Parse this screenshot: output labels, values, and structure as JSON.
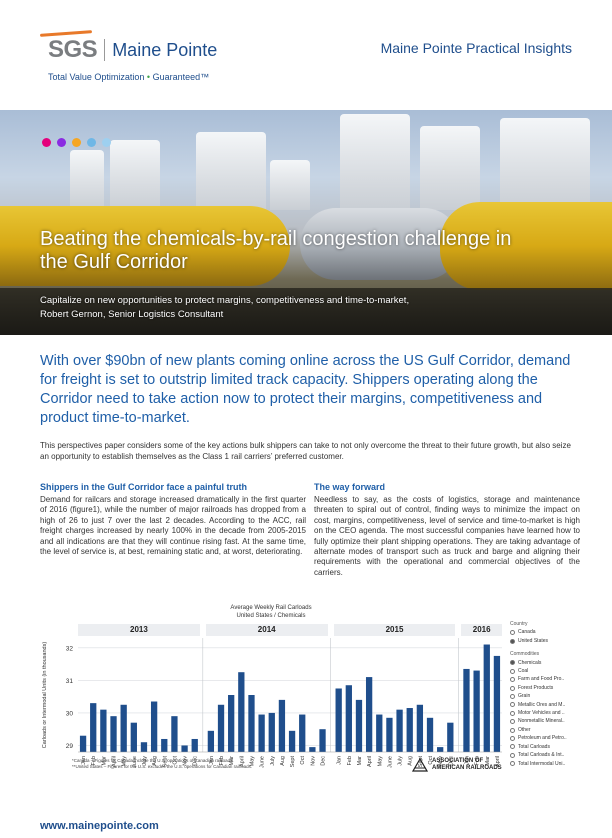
{
  "header": {
    "logo_sgs": "SGS",
    "logo_name": "Maine Pointe",
    "tagline": "Total Value Optimization",
    "tagline_dot": "•",
    "tagline_guarantee": "Guaranteed™",
    "series_title": "Maine Pointe Practical Insights"
  },
  "hero": {
    "title": "Beating the chemicals-by-rail congestion challenge in the Gulf Corridor",
    "subtitle": "Capitalize on new opportunities to protect margins, competitiveness and time-to-market,",
    "author": "Robert Gernon, Senior Logistics Consultant",
    "dot_colors": [
      "#e4007c",
      "#8a2be2",
      "#f5a623",
      "#6fb7e6",
      "#9ed0f0"
    ]
  },
  "lead": "With over $90bn of new plants coming online across the US Gulf Corridor, demand for freight is set to outstrip limited track capacity. Shippers operating along the Corridor need to take action now to protect their margins, competitiveness and product time-to-market.",
  "intro": "This perspectives paper considers some of the key actions bulk shippers can take to not only overcome the threat to their future growth, but also seize an opportunity to establish themselves as the Class 1 rail carriers’ preferred customer.",
  "left_col": {
    "heading": "Shippers in the Gulf Corridor face a painful truth",
    "body": "Demand for railcars and storage increased dramatically in the first quarter of 2016 (figure1), while the number of major railroads has dropped from a high of 26 to just 7 over the last 2 decades. According to the ACC, rail freight charges increased by nearly 100% in the decade from 2005-2015 and all indications are that they will continue rising fast. At the same time, the level of service is, at best, remaining static and, at worst, deteriorating."
  },
  "right_col": {
    "heading": "The way forward",
    "body": "Needless to say, as the costs of logistics, storage and maintenance threaten to spiral out of control, finding ways to minimize the impact on cost, margins, competitiveness, level of service and time-to-market is high on the CEO agenda. The most successful companies have learned how to fully optimize their plant shipping operations. They are taking advantage of alternate modes of transport such as truck and barge and aligning their requirements with the operational and commercial objectives of the carriers."
  },
  "legend": {
    "country_heading": "Country",
    "countries": [
      {
        "label": "Canada",
        "selected": false
      },
      {
        "label": "United States",
        "selected": true
      }
    ],
    "commodities_heading": "Commodities",
    "commodities": [
      {
        "label": "Chemicals",
        "selected": true
      },
      {
        "label": "Coal",
        "selected": false
      },
      {
        "label": "Farm and Food Pro..",
        "selected": false
      },
      {
        "label": "Forest Products",
        "selected": false
      },
      {
        "label": "Grain",
        "selected": false
      },
      {
        "label": "Metallic Ores and M..",
        "selected": false
      },
      {
        "label": "Motor Vehicles and ..",
        "selected": false
      },
      {
        "label": "Nonmetallic Mineral..",
        "selected": false
      },
      {
        "label": "Other",
        "selected": false
      },
      {
        "label": "Petroleum and Petro..",
        "selected": false
      },
      {
        "label": "Total Carloads",
        "selected": false
      },
      {
        "label": "Total Carloads & Int..",
        "selected": false
      },
      {
        "label": "Total Intermodal Uni..",
        "selected": false
      }
    ]
  },
  "chart_data": {
    "type": "bar",
    "title": "Average Weekly Rail Carloads",
    "subtitle": "United States / Chemicals",
    "ylabel": "Carloads or Intermodal Units (in thousands)",
    "xlabel": "",
    "ylim": [
      28.8,
      32.3
    ],
    "yticks": [
      29,
      30,
      31,
      32
    ],
    "grid": true,
    "bar_color": "#1f4e8c",
    "groups": [
      {
        "year": "2013",
        "months": [
          "Jan",
          "Feb",
          "Mar",
          "April",
          "May",
          "June",
          "July",
          "Aug",
          "Sept",
          "Oct",
          "Nov",
          "Dec"
        ],
        "values": [
          29.3,
          30.3,
          30.1,
          29.9,
          30.25,
          29.7,
          29.1,
          30.35,
          29.2,
          29.9,
          29.0,
          29.2
        ]
      },
      {
        "year": "2014",
        "months": [
          "Jan",
          "Feb",
          "Mar",
          "April",
          "May",
          "June",
          "July",
          "Aug",
          "Sept",
          "Oct",
          "Nov",
          "Dec"
        ],
        "values": [
          29.45,
          30.25,
          30.55,
          31.25,
          30.55,
          29.95,
          30.0,
          30.4,
          29.45,
          29.95,
          28.95,
          29.5
        ]
      },
      {
        "year": "2015",
        "months": [
          "Jan",
          "Feb",
          "Mar",
          "April",
          "May",
          "June",
          "July",
          "Aug",
          "Sept",
          "Oct",
          "Nov",
          "Dec"
        ],
        "values": [
          30.75,
          30.85,
          30.4,
          31.1,
          29.95,
          29.85,
          30.1,
          30.15,
          30.25,
          29.85,
          28.95,
          29.7
        ]
      },
      {
        "year": "2016",
        "months": [
          "Jan",
          "Feb",
          "Mar",
          "April"
        ],
        "values": [
          31.35,
          31.3,
          32.1,
          31.75
        ]
      }
    ],
    "footnotes": [
      "*Canada – Figures for Canada include the U.S. operations of Canadian railroads.",
      "**United States – Figures for the U.S. excludes the U.S. operations for Canadian railroads."
    ],
    "source": "ASSOCIATION OF AMERICAN RAILROADS"
  },
  "footer": {
    "url": "www.mainepointe.com"
  }
}
